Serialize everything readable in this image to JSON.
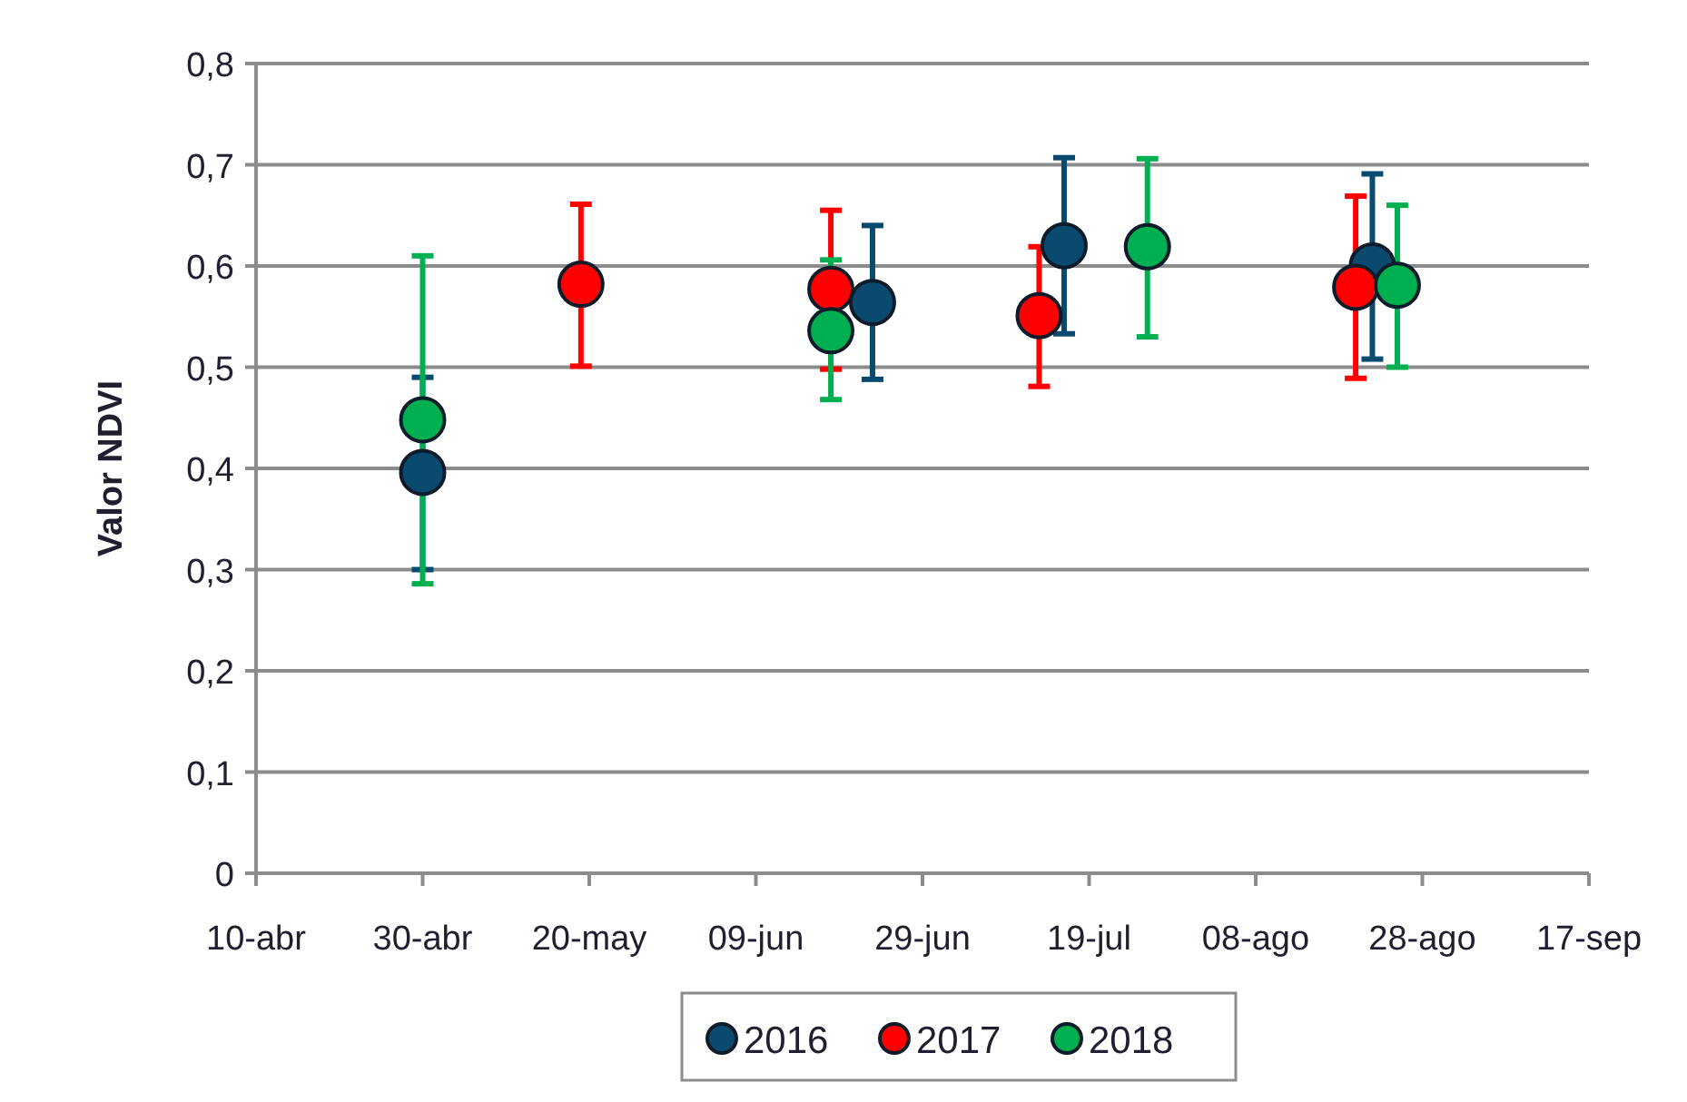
{
  "chart_data": {
    "type": "scatter",
    "ylabel": "Valor NDVI",
    "xlim": [
      "--04-10",
      "--09-17"
    ],
    "xticks": [
      {
        "value": "--04-10",
        "label": "10-abr"
      },
      {
        "value": "--04-30",
        "label": "30-abr"
      },
      {
        "value": "--05-20",
        "label": "20-may"
      },
      {
        "value": "--06-09",
        "label": "09-jun"
      },
      {
        "value": "--06-29",
        "label": "29-jun"
      },
      {
        "value": "--07-19",
        "label": "19-jul"
      },
      {
        "value": "--08-08",
        "label": "08-ago"
      },
      {
        "value": "--08-28",
        "label": "28-ago"
      },
      {
        "value": "--09-17",
        "label": "17-sep"
      }
    ],
    "ylim": [
      0,
      0.8
    ],
    "yticks": [
      0,
      {
        "value": 0.1,
        "label": "0,1"
      },
      {
        "value": 0.2,
        "label": "0,2"
      },
      {
        "value": 0.3,
        "label": "0,3"
      },
      {
        "value": 0.4,
        "label": "0,4"
      },
      {
        "value": 0.5,
        "label": "0,5"
      },
      {
        "value": 0.6,
        "label": "0,6"
      },
      {
        "value": 0.7,
        "label": "0,7"
      },
      {
        "value": 0.8,
        "label": "0,8"
      }
    ],
    "grid": "y",
    "legend": "bottom",
    "marker": "circle",
    "series": [
      {
        "name": "2016",
        "color": "#0b4a6f",
        "x": [
          "--04-30",
          "--06-23",
          "--07-16",
          "--08-22"
        ],
        "values": [
          0.396,
          0.564,
          0.62,
          0.6
        ],
        "errors": [
          [
            0.3,
            0.49
          ],
          [
            0.488,
            0.64
          ],
          [
            0.533,
            0.707
          ],
          [
            0.508,
            0.691
          ]
        ]
      },
      {
        "name": "2017",
        "color": "#ff0000",
        "x": [
          "--05-19",
          "--06-18",
          "--07-13",
          "--08-20"
        ],
        "values": [
          0.582,
          0.577,
          0.551,
          0.579
        ],
        "errors": [
          [
            0.501,
            0.661
          ],
          [
            0.498,
            0.655
          ],
          [
            0.481,
            0.619
          ],
          [
            0.489,
            0.669
          ]
        ]
      },
      {
        "name": "2018",
        "color": "#00b050",
        "x": [
          "--04-30",
          "--06-18",
          "--07-26",
          "--08-25"
        ],
        "values": [
          0.448,
          0.536,
          0.619,
          0.581
        ],
        "errors": [
          [
            0.286,
            0.61
          ],
          [
            0.468,
            0.606
          ],
          [
            0.53,
            0.706
          ],
          [
            0.5,
            0.66
          ]
        ]
      }
    ]
  }
}
